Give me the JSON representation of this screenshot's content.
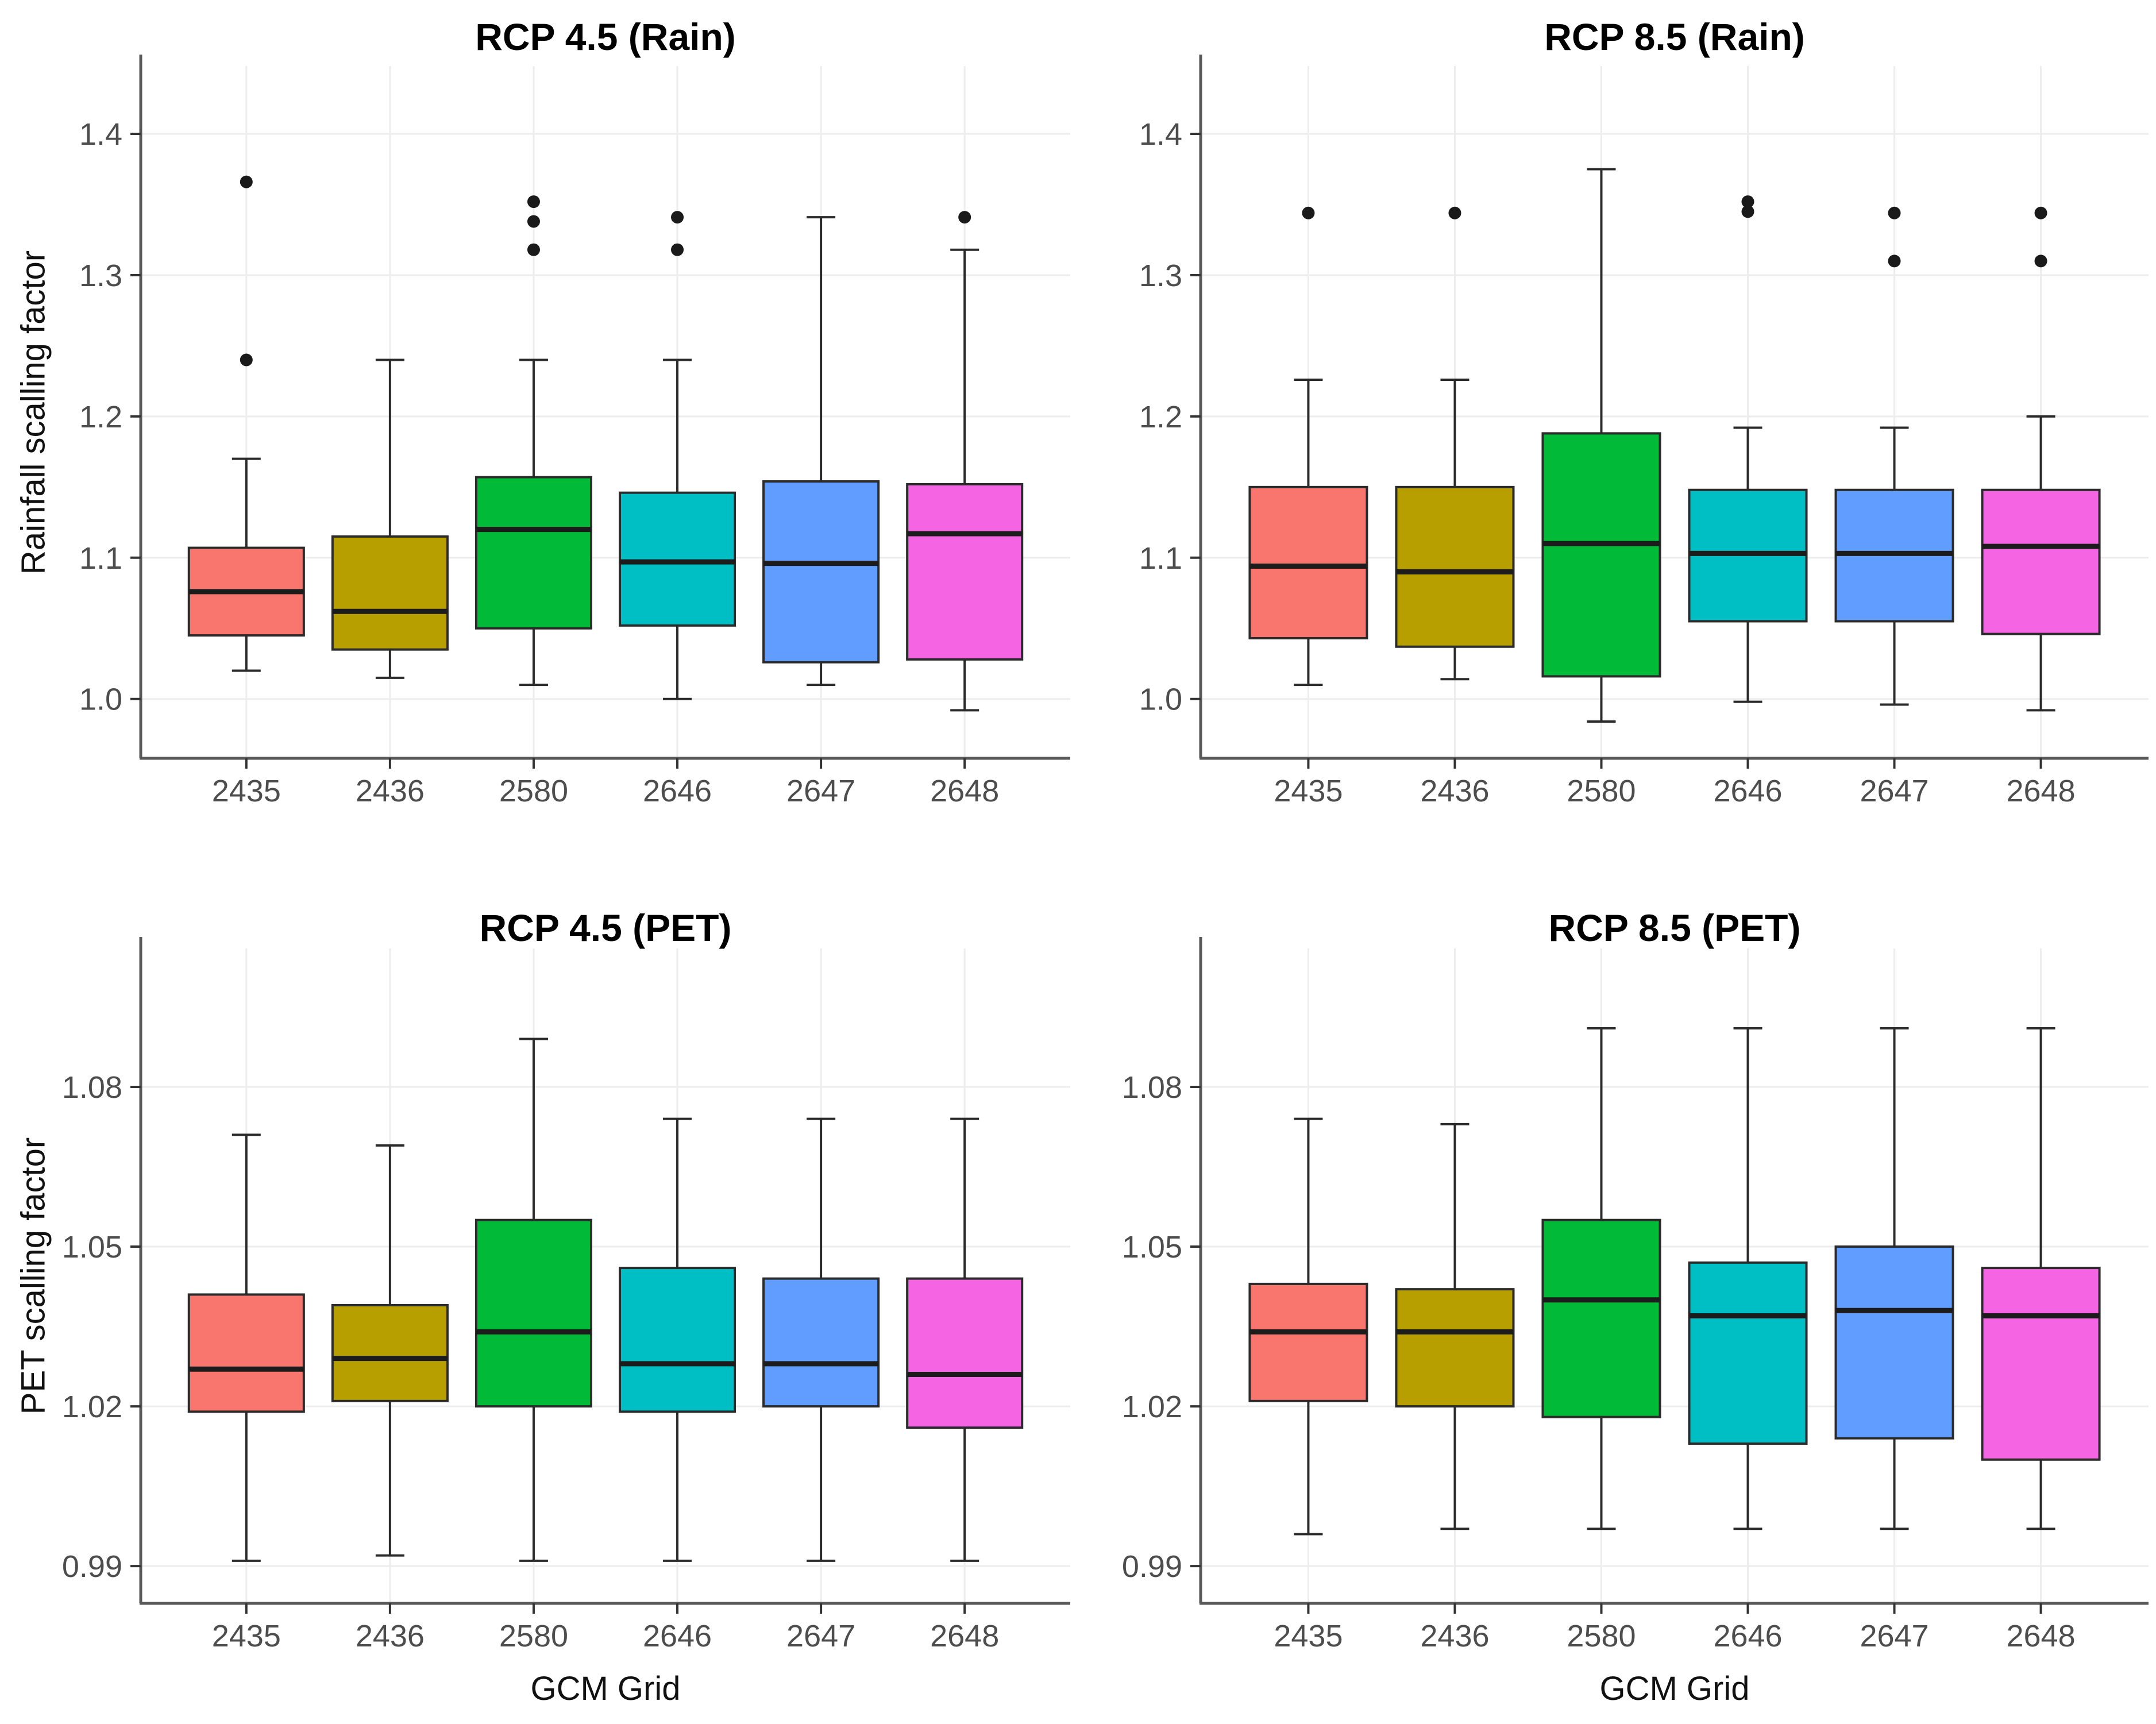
{
  "styles": {
    "background": "#ffffff",
    "grid_color": "#ededed",
    "axis_line_color": "#595959",
    "tick_color": "#333333",
    "tick_label_color": "#4d4d4d",
    "axis_title_color": "#111111",
    "title_color": "#000000",
    "box_border_color": "#2b2b2b",
    "median_color": "#1c1c1c",
    "whisker_color": "#2b2b2b",
    "outlier_color": "#1a1a1a"
  },
  "chart_data": [
    {
      "type": "boxplot",
      "title": "RCP 4.5 (Rain)",
      "ylabel": "Rainfall scalling factor",
      "xlabel": "",
      "categories": [
        "2435",
        "2436",
        "2580",
        "2646",
        "2647",
        "2648"
      ],
      "ylim": [
        0.958,
        1.448
      ],
      "yticks": [
        1.0,
        1.1,
        1.2,
        1.3,
        1.4
      ],
      "ytick_labels": [
        "1.0",
        "1.1",
        "1.2",
        "1.3",
        "1.4"
      ],
      "grid": true,
      "legend": false,
      "boxes": [
        {
          "category": "2435",
          "color": "#F8766D",
          "low": 1.02,
          "q1": 1.045,
          "median": 1.076,
          "q3": 1.107,
          "high": 1.17,
          "outliers": [
            1.24,
            1.366
          ]
        },
        {
          "category": "2436",
          "color": "#B79F00",
          "low": 1.015,
          "q1": 1.035,
          "median": 1.062,
          "q3": 1.115,
          "high": 1.24,
          "outliers": []
        },
        {
          "category": "2580",
          "color": "#00BA38",
          "low": 1.01,
          "q1": 1.05,
          "median": 1.12,
          "q3": 1.157,
          "high": 1.24,
          "outliers": [
            1.318,
            1.338,
            1.352
          ]
        },
        {
          "category": "2646",
          "color": "#00BFC4",
          "low": 1.0,
          "q1": 1.052,
          "median": 1.097,
          "q3": 1.146,
          "high": 1.24,
          "outliers": [
            1.318,
            1.341
          ]
        },
        {
          "category": "2647",
          "color": "#619CFF",
          "low": 1.01,
          "q1": 1.026,
          "median": 1.096,
          "q3": 1.154,
          "high": 1.341,
          "outliers": []
        },
        {
          "category": "2648",
          "color": "#F564E3",
          "low": 0.992,
          "q1": 1.028,
          "median": 1.117,
          "q3": 1.152,
          "high": 1.318,
          "outliers": [
            1.341
          ]
        }
      ]
    },
    {
      "type": "boxplot",
      "title": "RCP 8.5 (Rain)",
      "ylabel": "",
      "xlabel": "",
      "categories": [
        "2435",
        "2436",
        "2580",
        "2646",
        "2647",
        "2648"
      ],
      "ylim": [
        0.958,
        1.448
      ],
      "yticks": [
        1.0,
        1.1,
        1.2,
        1.3,
        1.4
      ],
      "ytick_labels": [
        "1.0",
        "1.1",
        "1.2",
        "1.3",
        "1.4"
      ],
      "grid": true,
      "legend": false,
      "boxes": [
        {
          "category": "2435",
          "color": "#F8766D",
          "low": 1.01,
          "q1": 1.043,
          "median": 1.094,
          "q3": 1.15,
          "high": 1.226,
          "outliers": [
            1.344
          ]
        },
        {
          "category": "2436",
          "color": "#B79F00",
          "low": 1.014,
          "q1": 1.037,
          "median": 1.09,
          "q3": 1.15,
          "high": 1.226,
          "outliers": [
            1.344
          ]
        },
        {
          "category": "2580",
          "color": "#00BA38",
          "low": 0.984,
          "q1": 1.016,
          "median": 1.11,
          "q3": 1.188,
          "high": 1.375,
          "outliers": []
        },
        {
          "category": "2646",
          "color": "#00BFC4",
          "low": 0.998,
          "q1": 1.055,
          "median": 1.103,
          "q3": 1.148,
          "high": 1.192,
          "outliers": [
            1.345,
            1.352
          ]
        },
        {
          "category": "2647",
          "color": "#619CFF",
          "low": 0.996,
          "q1": 1.055,
          "median": 1.103,
          "q3": 1.148,
          "high": 1.192,
          "outliers": [
            1.31,
            1.344
          ]
        },
        {
          "category": "2648",
          "color": "#F564E3",
          "low": 0.992,
          "q1": 1.046,
          "median": 1.108,
          "q3": 1.148,
          "high": 1.2,
          "outliers": [
            1.31,
            1.344
          ]
        }
      ]
    },
    {
      "type": "boxplot",
      "title": "RCP 4.5 (PET)",
      "ylabel": "PET scalling factor",
      "xlabel": "GCM Grid",
      "categories": [
        "2435",
        "2436",
        "2580",
        "2646",
        "2647",
        "2648"
      ],
      "ylim": [
        0.983,
        1.106
      ],
      "yticks": [
        0.99,
        1.02,
        1.05,
        1.08
      ],
      "ytick_labels": [
        "0.99",
        "1.02",
        "1.05",
        "1.08"
      ],
      "grid": true,
      "legend": false,
      "boxes": [
        {
          "category": "2435",
          "color": "#F8766D",
          "low": 0.991,
          "q1": 1.019,
          "median": 1.027,
          "q3": 1.041,
          "high": 1.071,
          "outliers": []
        },
        {
          "category": "2436",
          "color": "#B79F00",
          "low": 0.992,
          "q1": 1.021,
          "median": 1.029,
          "q3": 1.039,
          "high": 1.069,
          "outliers": []
        },
        {
          "category": "2580",
          "color": "#00BA38",
          "low": 0.991,
          "q1": 1.02,
          "median": 1.034,
          "q3": 1.055,
          "high": 1.089,
          "outliers": []
        },
        {
          "category": "2646",
          "color": "#00BFC4",
          "low": 0.991,
          "q1": 1.019,
          "median": 1.028,
          "q3": 1.046,
          "high": 1.074,
          "outliers": []
        },
        {
          "category": "2647",
          "color": "#619CFF",
          "low": 0.991,
          "q1": 1.02,
          "median": 1.028,
          "q3": 1.044,
          "high": 1.074,
          "outliers": []
        },
        {
          "category": "2648",
          "color": "#F564E3",
          "low": 0.991,
          "q1": 1.016,
          "median": 1.026,
          "q3": 1.044,
          "high": 1.074,
          "outliers": []
        }
      ]
    },
    {
      "type": "boxplot",
      "title": "RCP 8.5 (PET)",
      "ylabel": "",
      "xlabel": "GCM Grid",
      "categories": [
        "2435",
        "2436",
        "2580",
        "2646",
        "2647",
        "2648"
      ],
      "ylim": [
        0.983,
        1.106
      ],
      "yticks": [
        0.99,
        1.02,
        1.05,
        1.08
      ],
      "ytick_labels": [
        "0.99",
        "1.02",
        "1.05",
        "1.08"
      ],
      "grid": true,
      "legend": false,
      "boxes": [
        {
          "category": "2435",
          "color": "#F8766D",
          "low": 0.996,
          "q1": 1.021,
          "median": 1.034,
          "q3": 1.043,
          "high": 1.074,
          "outliers": []
        },
        {
          "category": "2436",
          "color": "#B79F00",
          "low": 0.997,
          "q1": 1.02,
          "median": 1.034,
          "q3": 1.042,
          "high": 1.073,
          "outliers": []
        },
        {
          "category": "2580",
          "color": "#00BA38",
          "low": 0.997,
          "q1": 1.018,
          "median": 1.04,
          "q3": 1.055,
          "high": 1.091,
          "outliers": []
        },
        {
          "category": "2646",
          "color": "#00BFC4",
          "low": 0.997,
          "q1": 1.013,
          "median": 1.037,
          "q3": 1.047,
          "high": 1.091,
          "outliers": []
        },
        {
          "category": "2647",
          "color": "#619CFF",
          "low": 0.997,
          "q1": 1.014,
          "median": 1.038,
          "q3": 1.05,
          "high": 1.091,
          "outliers": []
        },
        {
          "category": "2648",
          "color": "#F564E3",
          "low": 0.997,
          "q1": 1.01,
          "median": 1.037,
          "q3": 1.046,
          "high": 1.091,
          "outliers": []
        }
      ]
    }
  ]
}
